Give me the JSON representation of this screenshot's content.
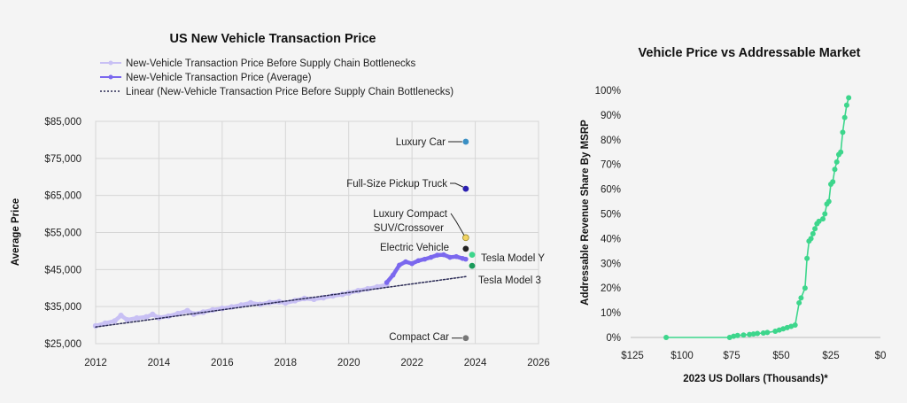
{
  "chart_data": [
    {
      "type": "line",
      "title": "US New Vehicle Transaction Price",
      "xlabel": "",
      "ylabel": "Average Price",
      "xlim": [
        2012,
        2026
      ],
      "ylim": [
        25000,
        85000
      ],
      "x_ticks": [
        "2012",
        "2014",
        "2016",
        "2018",
        "2020",
        "2022",
        "2024",
        "2026"
      ],
      "y_ticks": [
        "$25,000",
        "$35,000",
        "$45,000",
        "$55,000",
        "$65,000",
        "$75,000",
        "$85,000"
      ],
      "x_tick_values": [
        2012,
        2014,
        2016,
        2018,
        2020,
        2022,
        2024,
        2026
      ],
      "y_tick_values": [
        25000,
        35000,
        45000,
        55000,
        65000,
        75000,
        85000
      ],
      "grid": true,
      "legend_position": "top",
      "legend": [
        "New-Vehicle Transaction Price Before Supply Chain Bottlenecks",
        "New-Vehicle Transaction Price (Average)",
        "Linear (New-Vehicle Transaction Price Before Supply Chain Bottlenecks)"
      ],
      "series": [
        {
          "name": "New-Vehicle Transaction Price Before Supply Chain Bottlenecks",
          "color": "#c8c0f4",
          "x": [
            2012.0,
            2012.3,
            2012.6,
            2012.8,
            2013.0,
            2013.3,
            2013.6,
            2013.8,
            2014.0,
            2014.3,
            2014.6,
            2014.9,
            2015.1,
            2015.4,
            2015.7,
            2016.0,
            2016.3,
            2016.6,
            2016.9,
            2017.2,
            2017.5,
            2017.8,
            2018.0,
            2018.3,
            2018.6,
            2018.9,
            2019.2,
            2019.5,
            2019.8,
            2020.0,
            2020.3,
            2020.6,
            2020.9,
            2021.2
          ],
          "y": [
            29800,
            30500,
            31100,
            32600,
            31400,
            31900,
            32200,
            32900,
            32000,
            32400,
            33100,
            33900,
            33000,
            33500,
            34100,
            34500,
            34900,
            35400,
            36000,
            35600,
            36100,
            36300,
            36000,
            36600,
            37200,
            37000,
            37400,
            37900,
            38300,
            38700,
            39300,
            39800,
            40300,
            40900
          ]
        },
        {
          "name": "New-Vehicle Transaction Price (Average)",
          "color": "#7b68ee",
          "x": [
            2021.2,
            2021.4,
            2021.6,
            2021.8,
            2022.0,
            2022.2,
            2022.4,
            2022.6,
            2022.8,
            2023.0,
            2023.2,
            2023.4,
            2023.6,
            2023.7
          ],
          "y": [
            41500,
            43500,
            46200,
            47100,
            46600,
            47400,
            47800,
            48300,
            48900,
            49000,
            48300,
            48500,
            48000,
            47800
          ]
        },
        {
          "name": "Linear (New-Vehicle Transaction Price Before Supply Chain Bottlenecks)",
          "color": "#2b2b55",
          "x": [
            2012.0,
            2023.7
          ],
          "y": [
            29500,
            43100
          ]
        }
      ],
      "points": [
        {
          "label": "Luxury Car",
          "x": 2023.7,
          "y": 79500,
          "color": "#3a8fc4"
        },
        {
          "label": "Full-Size Pickup Truck",
          "x": 2023.7,
          "y": 66800,
          "color": "#2a1fb0"
        },
        {
          "label": "Luxury Compact SUV/Crossover",
          "label_lines": [
            "Luxury Compact",
            "SUV/Crossover"
          ],
          "x": 2023.7,
          "y": 53600,
          "color": "#f2d463"
        },
        {
          "label": "Electric Vehicle",
          "x": 2023.7,
          "y": 50600,
          "color": "#222222"
        },
        {
          "label": "Tesla Model Y",
          "x": 2023.9,
          "y": 49000,
          "color": "#3dd68c"
        },
        {
          "label": "Tesla Model 3",
          "x": 2023.9,
          "y": 46000,
          "color": "#1a9a5a"
        },
        {
          "label": "Compact Car",
          "x": 2023.7,
          "y": 26500,
          "color": "#777777"
        }
      ]
    },
    {
      "type": "line",
      "title": "Vehicle Price vs Addressable Market",
      "xlabel": "2023 US Dollars (Thousands)*",
      "ylabel": "Addressable Revenue Share By MSRP",
      "xlim": [
        125,
        0
      ],
      "ylim": [
        0,
        100
      ],
      "x_ticks": [
        "$125",
        "$100",
        "$75",
        "$50",
        "$25",
        "$0"
      ],
      "y_ticks": [
        "0%",
        "10%",
        "20%",
        "30%",
        "40%",
        "50%",
        "60%",
        "70%",
        "80%",
        "90%",
        "100%"
      ],
      "x_tick_values": [
        125,
        100,
        75,
        50,
        25,
        0
      ],
      "y_tick_values": [
        0,
        10,
        20,
        30,
        40,
        50,
        60,
        70,
        80,
        90,
        100
      ],
      "grid": false,
      "series": [
        {
          "name": "",
          "color": "#3dd68c",
          "x": [
            108,
            76,
            74,
            72,
            69,
            66,
            64,
            62,
            59,
            57,
            53,
            51,
            49,
            47,
            45,
            43,
            41,
            40,
            38,
            37,
            36,
            35,
            34,
            33,
            32,
            31,
            29,
            28,
            27,
            26,
            25,
            24,
            23,
            22,
            21,
            20,
            19,
            18,
            17,
            16
          ],
          "y": [
            0,
            0,
            0.5,
            0.8,
            1,
            1.2,
            1.4,
            1.6,
            1.8,
            2,
            2.5,
            3,
            3.5,
            4,
            4.5,
            5,
            14,
            16,
            20,
            32,
            39,
            40,
            42,
            44,
            46,
            47,
            48,
            50,
            54,
            55,
            62,
            63,
            68,
            71,
            74,
            75,
            83,
            89,
            94,
            97
          ]
        }
      ]
    }
  ]
}
